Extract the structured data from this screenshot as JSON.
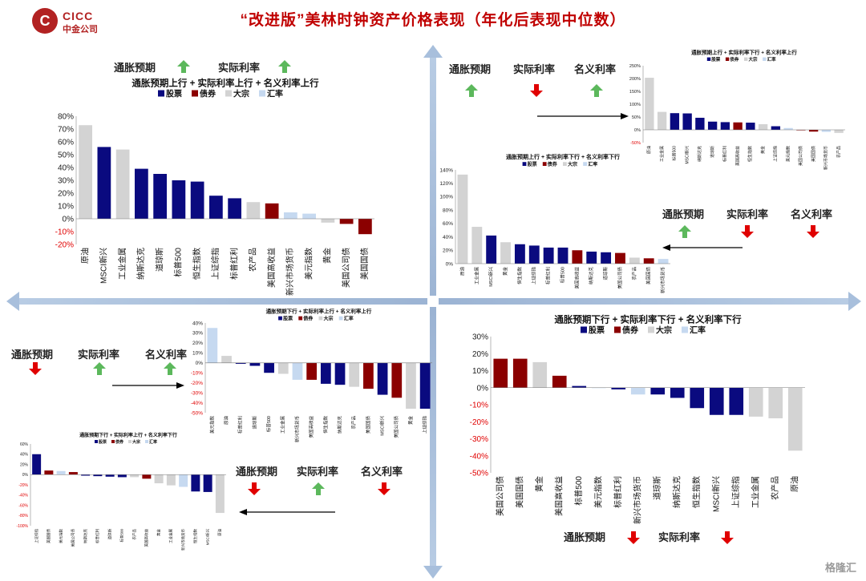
{
  "header": {
    "title": "“改进版”美林时钟资产价格表现（年化后表现中位数）",
    "logo_en": "CICC",
    "logo_cn": "中金公司"
  },
  "watermark": "格隆汇",
  "colors": {
    "equity": "#0a0a7f",
    "bond": "#8b0000",
    "commodity": "#d3d3d3",
    "fx": "#c6d9f0",
    "up": "#5cb85c",
    "down": "#e00000"
  },
  "legend_labels": {
    "equity": "股票",
    "bond": "债券",
    "commodity": "大宗",
    "fx": "汇率"
  },
  "drivers": {
    "inflation": "通胀预期",
    "real_rate": "实际利率",
    "nominal_rate": "名义利率"
  },
  "chart_data": [
    {
      "type": "bar",
      "id": "q1",
      "title": "通胀预期上行 + 实际利率上行 + 名义利率上行",
      "ylim": [
        -20,
        80
      ],
      "yticks": [
        "-20%",
        "-10%",
        "0%",
        "10%",
        "20%",
        "30%",
        "40%",
        "50%",
        "60%",
        "70%",
        "80%"
      ],
      "categories": [
        "原油",
        "MSCI新兴",
        "工业金属",
        "纳斯达克",
        "道琼斯",
        "标普500",
        "恒生指数",
        "上证综指",
        "标普红利",
        "农产品",
        "美国高收益",
        "新兴市场货币",
        "美元指数",
        "黄金",
        "美国公司债",
        "美国国债"
      ],
      "values": [
        73,
        56,
        54,
        39,
        35,
        30,
        29,
        18,
        16,
        13,
        12,
        5,
        4,
        -3,
        -4,
        -12
      ],
      "asset_class": [
        "commodity",
        "equity",
        "commodity",
        "equity",
        "equity",
        "equity",
        "equity",
        "equity",
        "equity",
        "commodity",
        "bond",
        "fx",
        "fx",
        "commodity",
        "bond",
        "bond"
      ]
    },
    {
      "type": "bar",
      "id": "q2a",
      "title": "通胀预期上行 + 实际利率下行 + 名义利率上行",
      "ylim": [
        -50,
        250
      ],
      "yticks": [
        "-50%",
        "0%",
        "50%",
        "100%",
        "150%",
        "200%",
        "250%"
      ],
      "categories": [
        "原油",
        "工业金属",
        "标普500",
        "MSCI新兴",
        "纳斯达克",
        "道琼斯",
        "标普红利",
        "美国高收益",
        "恒生指数",
        "黄金",
        "上证综指",
        "美元指数",
        "美国公司债",
        "美国国债",
        "新兴市场货币",
        "农产品"
      ],
      "values": [
        203,
        70,
        65,
        64,
        47,
        32,
        30,
        29,
        28,
        22,
        14,
        7,
        -2,
        -7,
        -8,
        -12
      ],
      "asset_class": [
        "commodity",
        "commodity",
        "equity",
        "equity",
        "equity",
        "equity",
        "equity",
        "bond",
        "equity",
        "commodity",
        "equity",
        "fx",
        "bond",
        "bond",
        "fx",
        "commodity"
      ]
    },
    {
      "type": "bar",
      "id": "q2b",
      "title": "通胀预期上行 + 实际利率下行 + 名义利率下行",
      "ylim": [
        0,
        140
      ],
      "yticks": [
        "0%",
        "20%",
        "40%",
        "60%",
        "80%",
        "100%",
        "120%",
        "140%"
      ],
      "categories": [
        "原油",
        "工业金属",
        "MSCI新兴",
        "黄金",
        "恒生指数",
        "上证综指",
        "标普红利",
        "标普500",
        "美国高收益",
        "纳斯达克",
        "道琼斯",
        "美国公司债",
        "农产品",
        "美国国债",
        "新兴市场货币"
      ],
      "values": [
        133,
        55,
        42,
        32,
        29,
        27,
        24,
        24,
        20,
        18,
        17,
        16,
        9,
        8,
        7
      ],
      "asset_class": [
        "commodity",
        "commodity",
        "equity",
        "commodity",
        "equity",
        "equity",
        "equity",
        "equity",
        "bond",
        "equity",
        "equity",
        "bond",
        "commodity",
        "bond",
        "fx"
      ]
    },
    {
      "type": "bar",
      "id": "q3a",
      "title": "通胀预期下行 + 实际利率上行 + 名义利率上行",
      "ylim": [
        -50,
        40
      ],
      "yticks": [
        "-50%",
        "-40%",
        "-30%",
        "-20%",
        "-10%",
        "0%",
        "10%",
        "20%",
        "30%",
        "40%"
      ],
      "categories": [
        "美元指数",
        "原油",
        "标普红利",
        "道琼斯",
        "标普500",
        "工业金属",
        "新兴市场货币",
        "美国高收益",
        "恒生指数",
        "纳斯达克",
        "农产品",
        "美国国债",
        "MSCI新兴",
        "美国公司债",
        "黄金",
        "上证综指"
      ],
      "values": [
        35,
        7,
        -1,
        -3,
        -10,
        -11,
        -17,
        -17,
        -21,
        -22,
        -24,
        -26,
        -32,
        -35,
        -46,
        -46
      ],
      "asset_class": [
        "fx",
        "commodity",
        "equity",
        "equity",
        "equity",
        "commodity",
        "fx",
        "bond",
        "equity",
        "equity",
        "commodity",
        "bond",
        "equity",
        "bond",
        "commodity",
        "equity"
      ]
    },
    {
      "type": "bar",
      "id": "q3b",
      "title": "通胀预期下行 + 实际利率上行 + 名义利率下行",
      "ylim": [
        -100,
        60
      ],
      "yticks": [
        "-100%",
        "-80%",
        "-60%",
        "-40%",
        "-20%",
        "0%",
        "20%",
        "40%",
        "60%"
      ],
      "categories": [
        "上证综指",
        "美国国债",
        "美元指数",
        "美国公司债",
        "纳斯达克",
        "标普红利",
        "道琼斯",
        "标普500",
        "农产品",
        "美国高收益",
        "黄金",
        "工业金属",
        "新兴市场货币",
        "恒生指数",
        "MSCI新兴",
        "原油"
      ],
      "values": [
        40,
        8,
        7,
        5,
        -2,
        -3,
        -4,
        -5,
        -5,
        -8,
        -17,
        -21,
        -24,
        -33,
        -34,
        -75
      ],
      "asset_class": [
        "equity",
        "bond",
        "fx",
        "bond",
        "equity",
        "equity",
        "equity",
        "equity",
        "commodity",
        "bond",
        "commodity",
        "commodity",
        "fx",
        "equity",
        "equity",
        "commodity"
      ]
    },
    {
      "type": "bar",
      "id": "q4",
      "title": "通胀预期下行 + 实际利率下行 + 名义利率下行",
      "ylim": [
        -50,
        30
      ],
      "yticks": [
        "-50%",
        "-40%",
        "-30%",
        "-20%",
        "-10%",
        "0%",
        "10%",
        "20%",
        "30%"
      ],
      "categories": [
        "美国公司债",
        "美国国债",
        "黄金",
        "美国高收益",
        "标普500",
        "美元指数",
        "标普红利",
        "新兴市场货币",
        "道琼斯",
        "纳斯达克",
        "恒生指数",
        "MSCI新兴",
        "上证综指",
        "工业金属",
        "农产品",
        "原油"
      ],
      "values": [
        17,
        17,
        15,
        7,
        1,
        0,
        -1,
        -4,
        -4,
        -6,
        -12,
        -16,
        -16,
        -17,
        -18,
        -37
      ],
      "asset_class": [
        "bond",
        "bond",
        "commodity",
        "bond",
        "equity",
        "fx",
        "equity",
        "fx",
        "equity",
        "equity",
        "equity",
        "equity",
        "equity",
        "commodity",
        "commodity",
        "commodity"
      ]
    }
  ]
}
